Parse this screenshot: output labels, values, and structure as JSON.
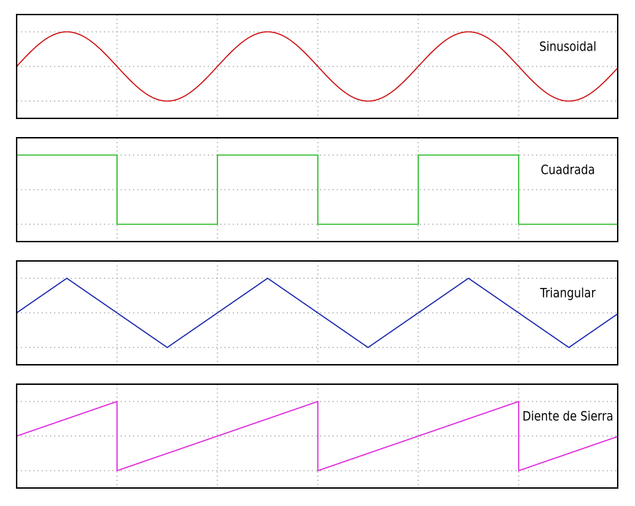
{
  "panels": [
    {
      "label": "Sinusoidal",
      "color": "#cc1111"
    },
    {
      "label": "Cuadrada",
      "color": "#22bb22"
    },
    {
      "label": "Triangular",
      "color": "#1122aa"
    },
    {
      "label": "Diente de Sierra",
      "color": "#dd22dd"
    }
  ]
}
